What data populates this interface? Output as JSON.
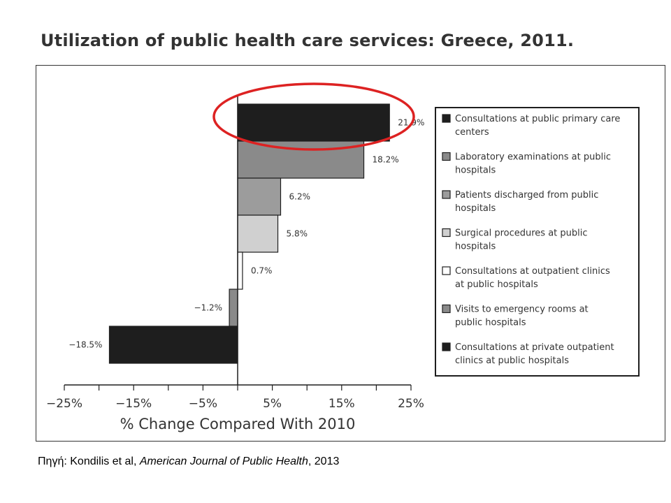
{
  "slide": {
    "title": "Utilization of public health care services: Greece, 2011."
  },
  "source": {
    "prefix": "Πηγή: Kondilis et al, ",
    "journal": "American Journal of Public Health",
    "suffix": ", 2013"
  },
  "colors": {
    "highlight_ellipse": "#dd2222",
    "black": "#1e1e1e",
    "dark_gray": "#8a8a8a",
    "mid_gray": "#9c9c9c",
    "light_gray": "#d0d0d0",
    "white": "#ffffff"
  },
  "chart_data": {
    "type": "bar",
    "orientation": "horizontal",
    "title": "",
    "xlabel": "% Change Compared With 2010",
    "ylabel": "",
    "xlim": [
      -25,
      25
    ],
    "xticks": [
      "−25%",
      "−15%",
      "−5%",
      "5%",
      "15%",
      "25%"
    ],
    "xtick_values": [
      -25,
      -15,
      -5,
      5,
      15,
      25
    ],
    "grid": false,
    "legend_position": "right",
    "categories": [
      "Consultations at public primary care centers",
      "Laboratory examinations at public hospitals",
      "Patients discharged from public hospitals",
      "Surgical procedures at public hospitals",
      "Consultations at outpatient clinics at public hospitals",
      "Visits to emergency rooms at public hospitals",
      "Consultations at private outpatient clinics at public hospitals"
    ],
    "legend_lines": [
      [
        "Consultations at public primary care",
        "centers"
      ],
      [
        "Laboratory examinations at public",
        "hospitals"
      ],
      [
        "Patients discharged from public",
        "hospitals"
      ],
      [
        "Surgical procedures at public",
        "hospitals"
      ],
      [
        "Consultations at outpatient clinics",
        "at public hospitals"
      ],
      [
        "Visits to emergency rooms at",
        "public hospitals"
      ],
      [
        "Consultations at private outpatient",
        "clinics at public hospitals"
      ]
    ],
    "values": [
      21.9,
      18.2,
      6.2,
      5.8,
      0.7,
      -1.2,
      -18.5
    ],
    "value_labels": [
      "21.9%",
      "18.2%",
      "6.2%",
      "5.8%",
      "0.7%",
      "−1.2%",
      "−18.5%"
    ],
    "bar_colors": [
      "#1e1e1e",
      "#8a8a8a",
      "#9c9c9c",
      "#d0d0d0",
      "#ffffff",
      "#8a8a8a",
      "#1e1e1e"
    ],
    "annotations": [
      "highlight ellipse around 'Consultations at public primary care centers' (21.9%)"
    ]
  }
}
